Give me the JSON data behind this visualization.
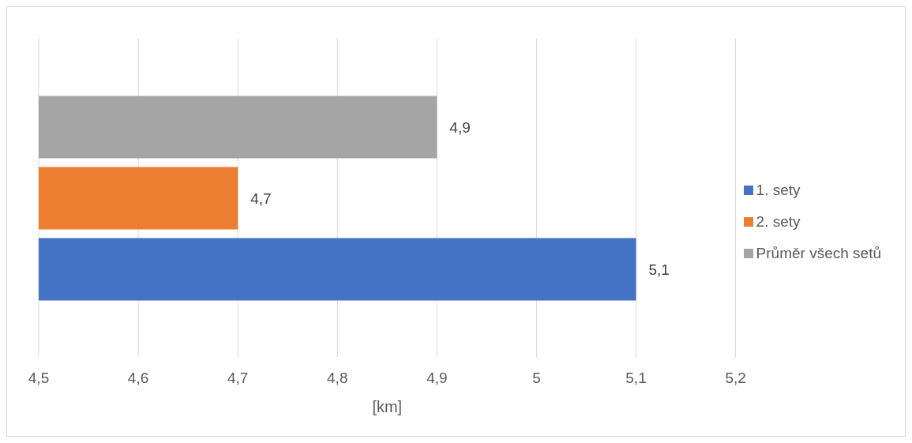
{
  "chart_data": {
    "type": "bar",
    "orientation": "horizontal",
    "xlabel": "[km]",
    "categories": [
      null
    ],
    "series": [
      {
        "name": "Průměr všech setů",
        "color": "#a5a5a5",
        "values": [
          4.9
        ],
        "value_labels": [
          "4,9"
        ]
      },
      {
        "name": "2. sety",
        "color": "#ed7d31",
        "values": [
          4.7
        ],
        "value_labels": [
          "4,7"
        ]
      },
      {
        "name": "1. sety",
        "color": "#4472c4",
        "values": [
          5.1
        ],
        "value_labels": [
          "5,1"
        ]
      }
    ],
    "xlim": [
      4.5,
      5.2
    ],
    "xticks": [
      {
        "value": 4.5,
        "label": "4,5"
      },
      {
        "value": 4.6,
        "label": "4,6"
      },
      {
        "value": 4.7,
        "label": "4,7"
      },
      {
        "value": 4.8,
        "label": "4,8"
      },
      {
        "value": 4.9,
        "label": "4,9"
      },
      5,
      {
        "value": 5.1,
        "label": "5,1"
      },
      {
        "value": 5.2,
        "label": "5,2"
      }
    ],
    "grid": "x",
    "legend": "right"
  }
}
